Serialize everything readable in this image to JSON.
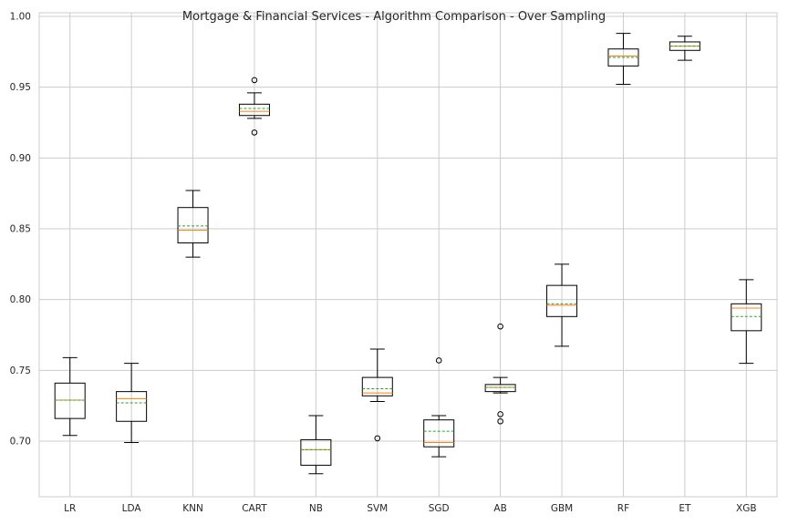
{
  "chart_data": {
    "type": "box",
    "title": "Mortgage & Financial Services - Algorithm Comparison - Over Sampling",
    "xlabel": "",
    "ylabel": "",
    "ylim": [
      0.66,
      1.001
    ],
    "yticks": [
      "0.70",
      "0.75",
      "0.80",
      "0.85",
      "0.90",
      "0.95",
      "1.00"
    ],
    "grid": true,
    "categories": [
      "LR",
      "LDA",
      "KNN",
      "CART",
      "NB",
      "SVM",
      "SGD",
      "AB",
      "GBM",
      "RF",
      "ET",
      "XGB"
    ],
    "boxes": [
      {
        "name": "LR",
        "whisker_low": 0.704,
        "q1": 0.716,
        "median": 0.729,
        "mean": 0.729,
        "q3": 0.741,
        "whisker_high": 0.759,
        "outliers": []
      },
      {
        "name": "LDA",
        "whisker_low": 0.699,
        "q1": 0.714,
        "median": 0.73,
        "mean": 0.727,
        "q3": 0.735,
        "whisker_high": 0.755,
        "outliers": []
      },
      {
        "name": "KNN",
        "whisker_low": 0.83,
        "q1": 0.84,
        "median": 0.849,
        "mean": 0.852,
        "q3": 0.865,
        "whisker_high": 0.877,
        "outliers": []
      },
      {
        "name": "CART",
        "whisker_low": 0.928,
        "q1": 0.93,
        "median": 0.933,
        "mean": 0.935,
        "q3": 0.938,
        "whisker_high": 0.946,
        "outliers": [
          0.955,
          0.918
        ]
      },
      {
        "name": "NB",
        "whisker_low": 0.677,
        "q1": 0.683,
        "median": 0.694,
        "mean": 0.694,
        "q3": 0.701,
        "whisker_high": 0.718,
        "outliers": []
      },
      {
        "name": "SVM",
        "whisker_low": 0.728,
        "q1": 0.732,
        "median": 0.734,
        "mean": 0.737,
        "q3": 0.745,
        "whisker_high": 0.765,
        "outliers": [
          0.702
        ]
      },
      {
        "name": "SGD",
        "whisker_low": 0.689,
        "q1": 0.696,
        "median": 0.699,
        "mean": 0.707,
        "q3": 0.715,
        "whisker_high": 0.718,
        "outliers": [
          0.757
        ]
      },
      {
        "name": "AB",
        "whisker_low": 0.734,
        "q1": 0.735,
        "median": 0.738,
        "mean": 0.738,
        "q3": 0.74,
        "whisker_high": 0.745,
        "outliers": [
          0.781,
          0.719,
          0.714
        ]
      },
      {
        "name": "GBM",
        "whisker_low": 0.767,
        "q1": 0.788,
        "median": 0.796,
        "mean": 0.797,
        "q3": 0.81,
        "whisker_high": 0.825,
        "outliers": []
      },
      {
        "name": "RF",
        "whisker_low": 0.952,
        "q1": 0.965,
        "median": 0.972,
        "mean": 0.971,
        "q3": 0.977,
        "whisker_high": 0.988,
        "outliers": []
      },
      {
        "name": "ET",
        "whisker_low": 0.969,
        "q1": 0.976,
        "median": 0.979,
        "mean": 0.979,
        "q3": 0.982,
        "whisker_high": 0.986,
        "outliers": []
      },
      {
        "name": "XGB",
        "whisker_low": 0.755,
        "q1": 0.778,
        "median": 0.794,
        "mean": 0.788,
        "q3": 0.797,
        "whisker_high": 0.814,
        "outliers": []
      }
    ],
    "colors": {
      "box": "#000000",
      "median": "#ff7f0e",
      "mean": "#2ca02c",
      "grid": "#cccccc",
      "spine": "#cccccc",
      "background": "#ffffff"
    }
  }
}
